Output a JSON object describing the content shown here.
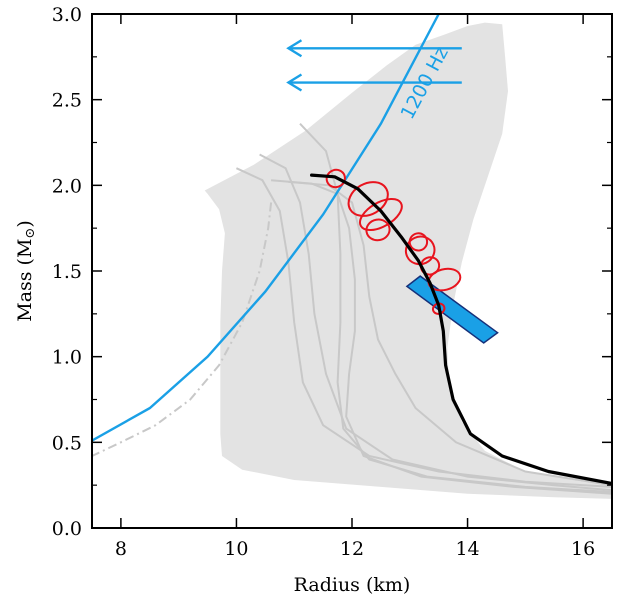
{
  "chart_data": {
    "type": "line",
    "xlabel": "Radius (km)",
    "ylabel_text": "Mass (M",
    "ylabel_symbol": "⊙",
    "ylabel_close": ")",
    "xlim": [
      7.5,
      16.5
    ],
    "ylim": [
      0.0,
      3.0
    ],
    "x_ticks": [
      8,
      10,
      12,
      14,
      16
    ],
    "x_tick_labels": [
      "8",
      "10",
      "12",
      "14",
      "16"
    ],
    "y_ticks": [
      0.0,
      0.5,
      1.0,
      1.5,
      2.0,
      2.5,
      3.0
    ],
    "y_tick_labels": [
      "0.0",
      "0.5",
      "1.0",
      "1.5",
      "2.0",
      "2.5",
      "3.0"
    ],
    "grid": false,
    "colors": {
      "band": "#e3e3e3",
      "gray_curves": "#c8c8c8",
      "spin_limit": "#1aa0e6",
      "constraint_box": "#1aa0e6",
      "constraint_box_edge": "#16307a",
      "contours": "#e8141e",
      "main_curve": "#000000"
    },
    "annotation": {
      "text": "1200 Hz",
      "x": 13.35,
      "y": 2.58,
      "arrows": [
        {
          "from": [
            13.9,
            2.8
          ],
          "to": [
            10.9,
            2.8
          ]
        },
        {
          "from": [
            13.9,
            2.6
          ],
          "to": [
            10.9,
            2.6
          ]
        }
      ]
    },
    "band_region": [
      [
        9.45,
        1.97
      ],
      [
        10.3,
        2.12
      ],
      [
        11.2,
        2.32
      ],
      [
        12.0,
        2.54
      ],
      [
        12.6,
        2.7
      ],
      [
        13.1,
        2.82
      ],
      [
        13.6,
        2.88
      ],
      [
        14.0,
        2.93
      ],
      [
        14.3,
        2.95
      ],
      [
        14.6,
        2.94
      ],
      [
        14.65,
        2.75
      ],
      [
        14.7,
        2.55
      ],
      [
        14.6,
        2.3
      ],
      [
        14.35,
        2.05
      ],
      [
        14.1,
        1.8
      ],
      [
        13.9,
        1.55
      ],
      [
        13.75,
        1.3
      ],
      [
        13.65,
        1.05
      ],
      [
        13.68,
        0.85
      ],
      [
        13.9,
        0.62
      ],
      [
        14.3,
        0.45
      ],
      [
        15.0,
        0.33
      ],
      [
        16.0,
        0.27
      ],
      [
        16.5,
        0.25
      ],
      [
        16.5,
        0.17
      ],
      [
        15.5,
        0.18
      ],
      [
        14.0,
        0.2
      ],
      [
        12.5,
        0.24
      ],
      [
        11.0,
        0.28
      ],
      [
        10.1,
        0.34
      ],
      [
        9.75,
        0.42
      ],
      [
        9.72,
        0.55
      ],
      [
        9.72,
        0.85
      ],
      [
        9.72,
        1.2
      ],
      [
        9.75,
        1.5
      ],
      [
        9.8,
        1.72
      ],
      [
        9.7,
        1.86
      ],
      [
        9.5,
        1.95
      ]
    ],
    "series": [
      {
        "style": "main",
        "points": [
          [
            11.3,
            2.06
          ],
          [
            11.7,
            2.05
          ],
          [
            12.1,
            1.98
          ],
          [
            12.5,
            1.85
          ],
          [
            12.85,
            1.7
          ],
          [
            13.15,
            1.56
          ],
          [
            13.35,
            1.43
          ],
          [
            13.5,
            1.3
          ],
          [
            13.58,
            1.15
          ],
          [
            13.62,
            0.95
          ],
          [
            13.75,
            0.75
          ],
          [
            14.05,
            0.55
          ],
          [
            14.6,
            0.42
          ],
          [
            15.4,
            0.33
          ],
          [
            16.5,
            0.26
          ]
        ]
      },
      {
        "style": "spin",
        "points": [
          [
            7.5,
            0.51
          ],
          [
            8.5,
            0.7
          ],
          [
            9.5,
            1.0
          ],
          [
            10.5,
            1.38
          ],
          [
            11.5,
            1.83
          ],
          [
            12.5,
            2.36
          ],
          [
            13.5,
            3.0
          ],
          [
            13.6,
            3.06
          ]
        ]
      },
      {
        "style": "gray",
        "points": [
          [
            10.0,
            2.1
          ],
          [
            10.45,
            2.03
          ],
          [
            10.75,
            1.85
          ],
          [
            10.9,
            1.55
          ],
          [
            11.0,
            1.2
          ],
          [
            11.15,
            0.85
          ],
          [
            11.5,
            0.6
          ],
          [
            12.3,
            0.42
          ],
          [
            13.5,
            0.33
          ],
          [
            15.0,
            0.27
          ],
          [
            16.5,
            0.24
          ]
        ]
      },
      {
        "style": "gray",
        "points": [
          [
            10.4,
            2.18
          ],
          [
            10.85,
            2.1
          ],
          [
            11.1,
            1.9
          ],
          [
            11.25,
            1.6
          ],
          [
            11.35,
            1.25
          ],
          [
            11.55,
            0.9
          ],
          [
            11.9,
            0.58
          ],
          [
            12.7,
            0.4
          ],
          [
            14.0,
            0.3
          ],
          [
            15.5,
            0.25
          ],
          [
            16.5,
            0.22
          ]
        ]
      },
      {
        "style": "gray",
        "points": [
          [
            11.1,
            2.36
          ],
          [
            11.55,
            2.2
          ],
          [
            11.75,
            1.95
          ],
          [
            11.8,
            1.6
          ],
          [
            11.8,
            1.2
          ],
          [
            11.75,
            0.85
          ],
          [
            11.85,
            0.58
          ],
          [
            12.3,
            0.4
          ],
          [
            13.3,
            0.3
          ],
          [
            15.0,
            0.24
          ],
          [
            16.5,
            0.21
          ]
        ]
      },
      {
        "style": "gray",
        "points": [
          [
            10.6,
            2.03
          ],
          [
            11.3,
            2.01
          ],
          [
            11.75,
            1.95
          ],
          [
            11.95,
            1.75
          ],
          [
            12.05,
            1.45
          ],
          [
            12.05,
            1.15
          ],
          [
            11.95,
            0.9
          ],
          [
            11.9,
            0.65
          ],
          [
            12.2,
            0.42
          ],
          [
            13.2,
            0.3
          ],
          [
            14.8,
            0.24
          ],
          [
            16.5,
            0.2
          ]
        ]
      },
      {
        "style": "gray",
        "points": [
          [
            10.9,
            2.02
          ],
          [
            11.6,
            2.0
          ],
          [
            12.0,
            1.9
          ],
          [
            12.2,
            1.65
          ],
          [
            12.3,
            1.35
          ],
          [
            12.45,
            1.1
          ],
          [
            12.75,
            0.9
          ],
          [
            13.1,
            0.7
          ],
          [
            13.8,
            0.5
          ],
          [
            15.0,
            0.33
          ],
          [
            16.5,
            0.25
          ]
        ]
      },
      {
        "style": "gray-dash",
        "points": [
          [
            10.6,
            1.9
          ],
          [
            10.55,
            1.75
          ],
          [
            10.4,
            1.5
          ],
          [
            10.1,
            1.2
          ],
          [
            9.7,
            0.95
          ],
          [
            9.2,
            0.75
          ],
          [
            8.6,
            0.6
          ],
          [
            8.0,
            0.5
          ],
          [
            7.5,
            0.42
          ]
        ]
      }
    ],
    "contours": [
      {
        "cx": 11.72,
        "cy": 2.04,
        "rx": 0.16,
        "ry": 0.05,
        "angle": -20
      },
      {
        "cx": 12.28,
        "cy": 1.92,
        "rx": 0.36,
        "ry": 0.09,
        "angle": -30
      },
      {
        "cx": 12.5,
        "cy": 1.83,
        "rx": 0.4,
        "ry": 0.07,
        "angle": -30
      },
      {
        "cx": 12.45,
        "cy": 1.74,
        "rx": 0.2,
        "ry": 0.06,
        "angle": -10
      },
      {
        "cx": 13.18,
        "cy": 1.62,
        "rx": 0.25,
        "ry": 0.08,
        "angle": -25
      },
      {
        "cx": 13.15,
        "cy": 1.67,
        "rx": 0.15,
        "ry": 0.05,
        "angle": -10
      },
      {
        "cx": 13.35,
        "cy": 1.53,
        "rx": 0.16,
        "ry": 0.05,
        "angle": -20
      },
      {
        "cx": 13.6,
        "cy": 1.45,
        "rx": 0.28,
        "ry": 0.06,
        "angle": -15
      },
      {
        "cx": 13.5,
        "cy": 1.28,
        "rx": 0.1,
        "ry": 0.03,
        "angle": -20
      }
    ],
    "constraint_box": {
      "corners": [
        [
          12.95,
          1.41
        ],
        [
          13.18,
          1.47
        ],
        [
          14.52,
          1.14
        ],
        [
          14.28,
          1.08
        ]
      ]
    }
  }
}
